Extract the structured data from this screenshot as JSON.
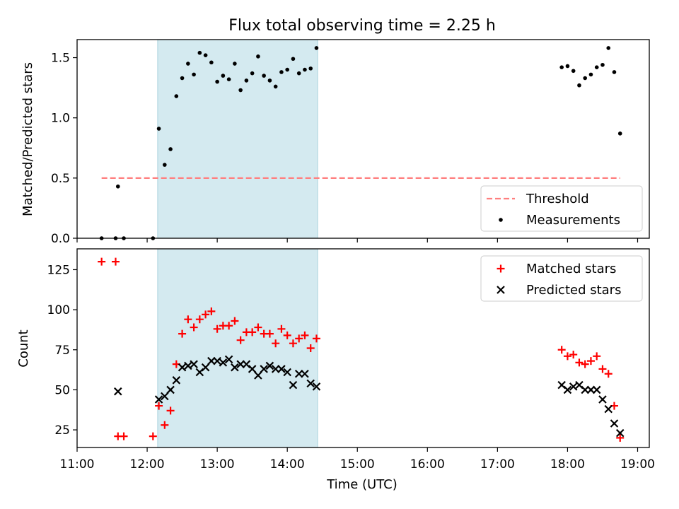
{
  "chart_data": [
    {
      "type": "scatter",
      "title": "Flux total observing time = 2.25 h",
      "xlabel": "",
      "ylabel": "Matched/Predicted stars",
      "xlim": [
        "11:00",
        "19:10"
      ],
      "ylim": [
        0,
        1.65
      ],
      "yticks": [
        0.0,
        0.5,
        1.0,
        1.5
      ],
      "ytick_labels": [
        "0.0",
        "0.5",
        "1.0",
        "1.5"
      ],
      "xtick_labels_shown": false,
      "highlight_span": {
        "x0": "12:09",
        "x1": "14:26",
        "color": "#d4eaf0"
      },
      "threshold": {
        "name": "Threshold",
        "value": 0.5,
        "x_from": "11:21",
        "x_to": "18:45",
        "color": "#ff7f7f",
        "style": "dashed"
      },
      "legend": {
        "location": "lower-right",
        "entries": [
          "Threshold",
          "Measurements"
        ]
      },
      "series": [
        {
          "name": "Measurements",
          "marker": "dot",
          "color": "#000000",
          "points": [
            [
              "11:21",
              0.0
            ],
            [
              "11:33",
              0.0
            ],
            [
              "11:35",
              0.43
            ],
            [
              "11:40",
              0.0
            ],
            [
              "12:05",
              0.0
            ],
            [
              "12:10",
              0.91
            ],
            [
              "12:15",
              0.61
            ],
            [
              "12:20",
              0.74
            ],
            [
              "12:25",
              1.18
            ],
            [
              "12:30",
              1.33
            ],
            [
              "12:35",
              1.45
            ],
            [
              "12:40",
              1.36
            ],
            [
              "12:45",
              1.54
            ],
            [
              "12:50",
              1.52
            ],
            [
              "12:55",
              1.46
            ],
            [
              "13:00",
              1.3
            ],
            [
              "13:05",
              1.35
            ],
            [
              "13:10",
              1.32
            ],
            [
              "13:15",
              1.45
            ],
            [
              "13:20",
              1.23
            ],
            [
              "13:25",
              1.31
            ],
            [
              "13:30",
              1.37
            ],
            [
              "13:35",
              1.51
            ],
            [
              "13:40",
              1.35
            ],
            [
              "13:45",
              1.31
            ],
            [
              "13:50",
              1.26
            ],
            [
              "13:55",
              1.38
            ],
            [
              "14:00",
              1.4
            ],
            [
              "14:05",
              1.49
            ],
            [
              "14:10",
              1.37
            ],
            [
              "14:15",
              1.4
            ],
            [
              "14:20",
              1.41
            ],
            [
              "14:25",
              1.58
            ],
            [
              "17:55",
              1.42
            ],
            [
              "18:00",
              1.43
            ],
            [
              "18:05",
              1.39
            ],
            [
              "18:10",
              1.27
            ],
            [
              "18:15",
              1.33
            ],
            [
              "18:20",
              1.36
            ],
            [
              "18:25",
              1.42
            ],
            [
              "18:30",
              1.44
            ],
            [
              "18:35",
              1.58
            ],
            [
              "18:40",
              1.38
            ],
            [
              "18:45",
              0.87
            ]
          ]
        }
      ]
    },
    {
      "type": "scatter",
      "title": "",
      "xlabel": "Time (UTC)",
      "ylabel": "Count",
      "xlim": [
        "11:00",
        "19:10"
      ],
      "ylim": [
        14,
        138
      ],
      "yticks": [
        25,
        50,
        75,
        100,
        125
      ],
      "ytick_labels": [
        "25",
        "50",
        "75",
        "100",
        "125"
      ],
      "xticks": [
        "11:00",
        "12:00",
        "13:00",
        "14:00",
        "15:00",
        "16:00",
        "17:00",
        "18:00",
        "19:00"
      ],
      "xtick_labels": [
        "11:00",
        "12:00",
        "13:00",
        "14:00",
        "15:00",
        "16:00",
        "17:00",
        "18:00",
        "19:00"
      ],
      "highlight_span": {
        "x0": "12:09",
        "x1": "14:26",
        "color": "#d4eaf0"
      },
      "legend": {
        "location": "upper-right",
        "entries": [
          "Matched stars",
          "Predicted stars"
        ]
      },
      "series": [
        {
          "name": "Matched stars",
          "marker": "plus",
          "color": "#ff0000",
          "points": [
            [
              "11:21",
              130
            ],
            [
              "11:33",
              130
            ],
            [
              "11:35",
              21
            ],
            [
              "11:40",
              21
            ],
            [
              "12:05",
              21
            ],
            [
              "12:10",
              40
            ],
            [
              "12:15",
              28
            ],
            [
              "12:20",
              37
            ],
            [
              "12:25",
              66
            ],
            [
              "12:30",
              85
            ],
            [
              "12:35",
              94
            ],
            [
              "12:40",
              89
            ],
            [
              "12:45",
              94
            ],
            [
              "12:50",
              97
            ],
            [
              "12:55",
              99
            ],
            [
              "13:00",
              88
            ],
            [
              "13:05",
              90
            ],
            [
              "13:10",
              90
            ],
            [
              "13:15",
              93
            ],
            [
              "13:20",
              81
            ],
            [
              "13:25",
              86
            ],
            [
              "13:30",
              86
            ],
            [
              "13:35",
              89
            ],
            [
              "13:40",
              85
            ],
            [
              "13:45",
              85
            ],
            [
              "13:50",
              79
            ],
            [
              "13:55",
              88
            ],
            [
              "14:00",
              84
            ],
            [
              "14:05",
              79
            ],
            [
              "14:10",
              82
            ],
            [
              "14:15",
              84
            ],
            [
              "14:20",
              76
            ],
            [
              "14:25",
              82
            ],
            [
              "17:55",
              75
            ],
            [
              "18:00",
              71
            ],
            [
              "18:05",
              72
            ],
            [
              "18:10",
              67
            ],
            [
              "18:15",
              66
            ],
            [
              "18:20",
              68
            ],
            [
              "18:25",
              71
            ],
            [
              "18:30",
              63
            ],
            [
              "18:35",
              60
            ],
            [
              "18:40",
              40
            ],
            [
              "18:45",
              20
            ]
          ]
        },
        {
          "name": "Predicted stars",
          "marker": "x",
          "color": "#000000",
          "points": [
            [
              "11:35",
              49
            ],
            [
              "12:10",
              44
            ],
            [
              "12:15",
              46
            ],
            [
              "12:20",
              50
            ],
            [
              "12:25",
              56
            ],
            [
              "12:30",
              64
            ],
            [
              "12:35",
              65
            ],
            [
              "12:40",
              66
            ],
            [
              "12:45",
              61
            ],
            [
              "12:50",
              64
            ],
            [
              "12:55",
              68
            ],
            [
              "13:00",
              68
            ],
            [
              "13:05",
              67
            ],
            [
              "13:10",
              69
            ],
            [
              "13:15",
              64
            ],
            [
              "13:20",
              66
            ],
            [
              "13:25",
              66
            ],
            [
              "13:30",
              63
            ],
            [
              "13:35",
              59
            ],
            [
              "13:40",
              63
            ],
            [
              "13:45",
              65
            ],
            [
              "13:50",
              63
            ],
            [
              "13:55",
              63
            ],
            [
              "14:00",
              61
            ],
            [
              "14:05",
              53
            ],
            [
              "14:10",
              60
            ],
            [
              "14:15",
              60
            ],
            [
              "14:20",
              54
            ],
            [
              "14:25",
              52
            ],
            [
              "17:55",
              53
            ],
            [
              "18:00",
              50
            ],
            [
              "18:05",
              52
            ],
            [
              "18:10",
              53
            ],
            [
              "18:15",
              50
            ],
            [
              "18:20",
              50
            ],
            [
              "18:25",
              50
            ],
            [
              "18:30",
              44
            ],
            [
              "18:35",
              38
            ],
            [
              "18:40",
              29
            ],
            [
              "18:45",
              23
            ]
          ]
        }
      ]
    }
  ]
}
